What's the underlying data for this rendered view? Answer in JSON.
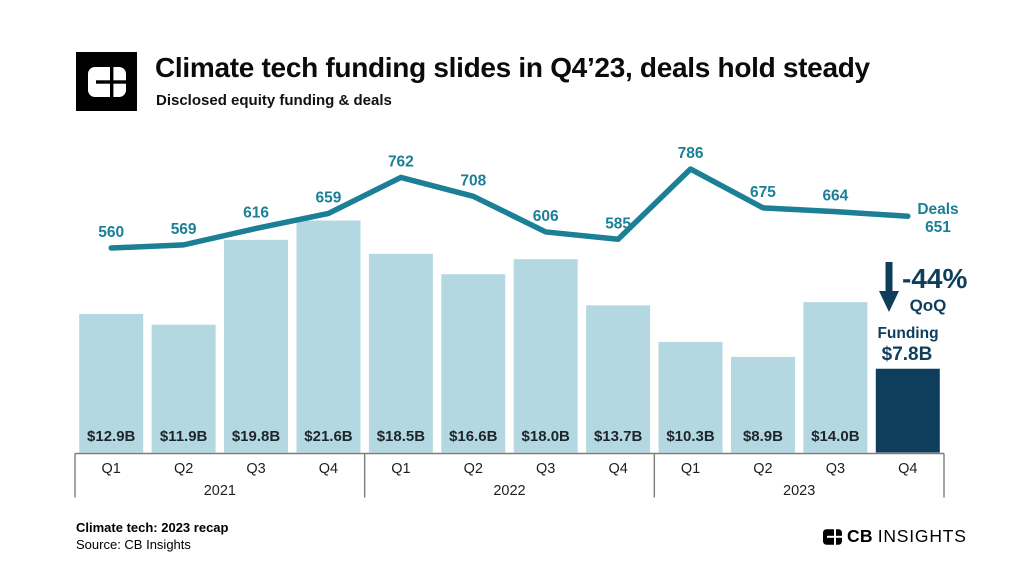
{
  "header": {
    "title": "Climate tech funding slides in Q4’23, deals hold steady",
    "subtitle": "Disclosed equity funding & deals"
  },
  "footer": {
    "caption": "Climate tech: 2023 recap",
    "source": "Source: CB Insights",
    "brand_bold": "CB",
    "brand_rest": "INSIGHTS"
  },
  "colors": {
    "bar": "#b4d8e1",
    "bar_highlight": "#0e3e5c",
    "line": "#1b7f96",
    "value_label": "#1d262d",
    "axis": "#7d7d7d",
    "axis_text": "#1f1f1f",
    "annotation": "#0e3e5c"
  },
  "chart_data": {
    "type": "bar+line",
    "title": "Climate tech funding slides in Q4’23, deals hold steady",
    "subtitle": "Disclosed equity funding & deals",
    "categories": [
      "Q1",
      "Q2",
      "Q3",
      "Q4",
      "Q1",
      "Q2",
      "Q3",
      "Q4",
      "Q1",
      "Q2",
      "Q3",
      "Q4"
    ],
    "year_groups": [
      {
        "label": "2021",
        "span": 4
      },
      {
        "label": "2022",
        "span": 4
      },
      {
        "label": "2023",
        "span": 4
      }
    ],
    "series": [
      {
        "name": "Funding ($B)",
        "type": "bar",
        "values": [
          12.9,
          11.9,
          19.8,
          21.6,
          18.5,
          16.6,
          18.0,
          13.7,
          10.3,
          8.9,
          14.0,
          7.8
        ],
        "labels": [
          "$12.9B",
          "$11.9B",
          "$19.8B",
          "$21.6B",
          "$18.5B",
          "$16.6B",
          "$18.0B",
          "$13.7B",
          "$10.3B",
          "$8.9B",
          "$14.0B",
          ""
        ],
        "highlight_index": 11
      },
      {
        "name": "Deals",
        "type": "line",
        "values": [
          560,
          569,
          616,
          659,
          762,
          708,
          606,
          585,
          786,
          675,
          664,
          651
        ],
        "labels": [
          "560",
          "569",
          "616",
          "659",
          "762",
          "708",
          "606",
          "585",
          "786",
          "675",
          "664",
          ""
        ]
      }
    ],
    "annotations": {
      "qoq_change": "-44%",
      "qoq_label": "QoQ",
      "funding_label": "Funding",
      "funding_value": "$7.8B",
      "deals_label": "Deals",
      "deals_value": "651"
    },
    "legend_position": "right",
    "grid": false
  }
}
